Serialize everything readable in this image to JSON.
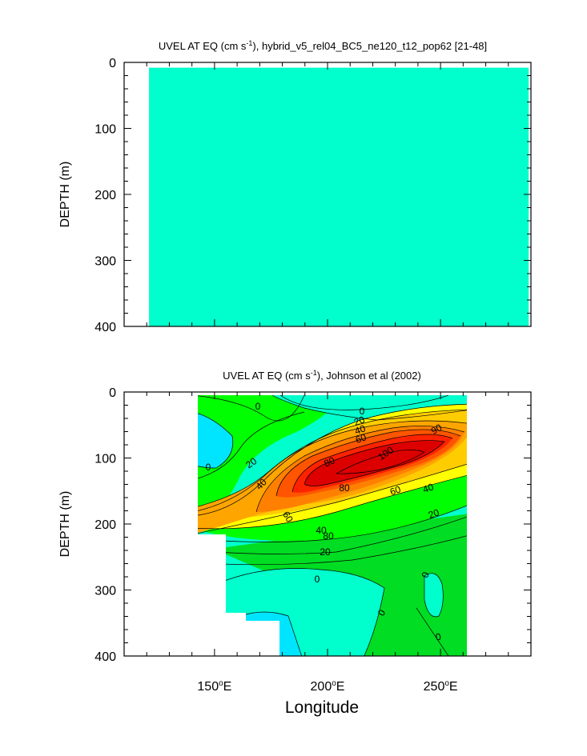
{
  "chart_data": [
    {
      "type": "heatmap",
      "title": "UVEL AT EQ (cm s",
      "title_sup": "-1",
      "title_rest": "), hybrid_v5_rel04_BC5_ne120_t12_pop62 [21-48]",
      "ylabel": "DEPTH (m)",
      "yticks": [
        "0",
        "100",
        "200",
        "300",
        "400"
      ],
      "ylim": [
        0,
        400
      ],
      "xlim": [
        110,
        290
      ],
      "fill_extent": {
        "lon": [
          121,
          289
        ],
        "depth": [
          8,
          400
        ]
      },
      "fill_color": "#00ffcc",
      "note": "uniform fill"
    },
    {
      "type": "heatmap",
      "title": "UVEL AT EQ (cm s",
      "title_sup": "-1",
      "title_rest": "), Johnson et al (2002)",
      "xlabel": "Longitude",
      "ylabel": "DEPTH (m)",
      "yticks": [
        "0",
        "100",
        "200",
        "300",
        "400"
      ],
      "xticks": [
        {
          "value": 150,
          "label": "150",
          "sup": "o",
          "suffix": "E"
        },
        {
          "value": 200,
          "label": "200",
          "sup": "o",
          "suffix": "E"
        },
        {
          "value": 250,
          "label": "250",
          "sup": "o",
          "suffix": "E"
        }
      ],
      "ylim": [
        0,
        400
      ],
      "xlim": [
        110,
        290
      ],
      "data_extent": {
        "lon": [
          143,
          265
        ],
        "depth": [
          8,
          400
        ]
      },
      "core": {
        "lon": 232,
        "depth": 100,
        "max_value": 100
      },
      "colors": {
        "<0": "#00e5ff",
        "0-10": "#00ffcc",
        "10-20": "#00ff00",
        "20-30": "#66ff00",
        "30-40": "#ffff00",
        "40-50": "#ffcc00",
        "50-60": "#ffa500",
        "60-70": "#ff8000",
        "70-80": "#ff5500",
        "80-90": "#ff2200",
        ">90": "#dd0000"
      },
      "contour_labels": [
        "0",
        "0",
        "0",
        "20",
        "40",
        "60",
        "80",
        "80",
        "100",
        "90",
        "20",
        "40",
        "60",
        "80",
        "40",
        "20",
        "0",
        "0",
        "0",
        "0",
        "20",
        "40",
        "60"
      ]
    }
  ]
}
